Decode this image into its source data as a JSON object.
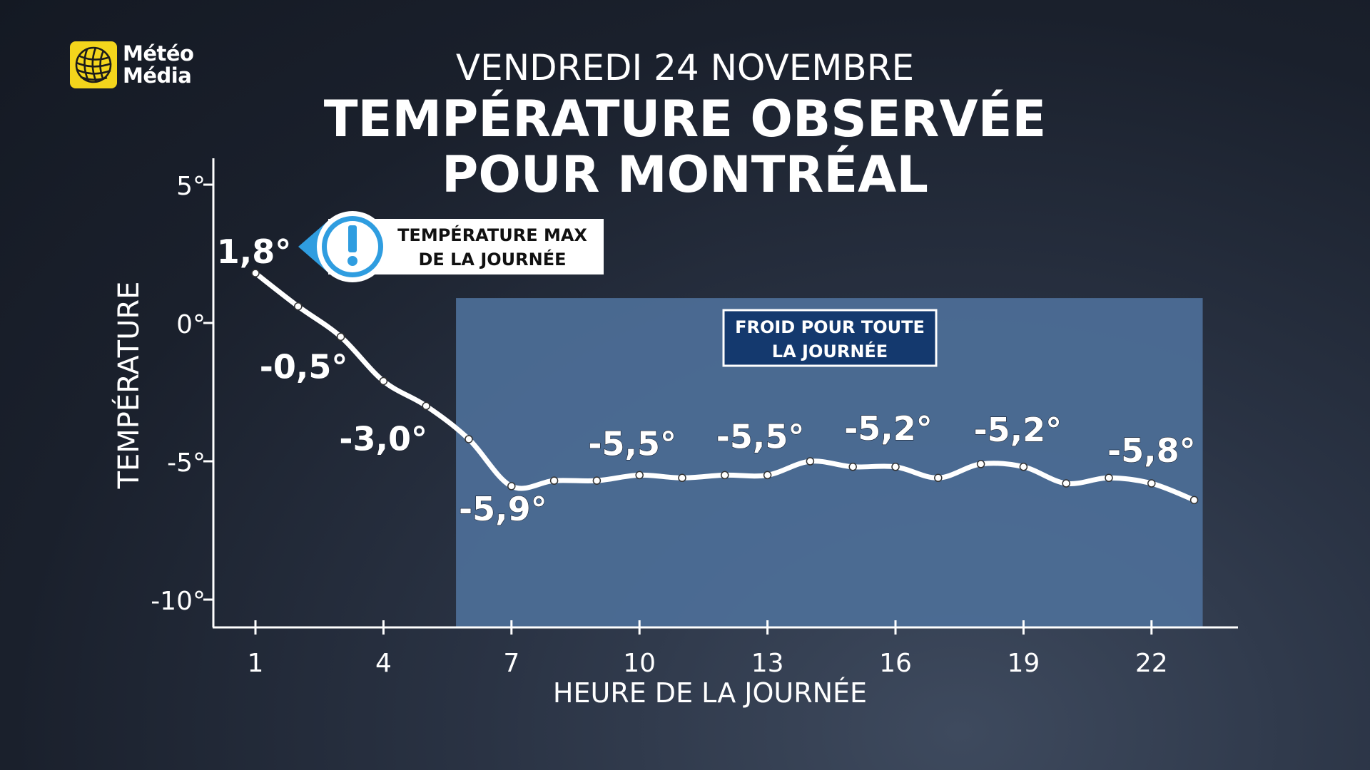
{
  "brand": {
    "line1": "Météo",
    "line2": "Média",
    "color": "#f3d51c"
  },
  "title": {
    "date": "VENDREDI 24 NOVEMBRE",
    "line1": "TEMPÉRATURE OBSERVÉE",
    "line2": "POUR MONTRÉAL"
  },
  "callouts": {
    "max": {
      "line1": "TEMPÉRATURE MAX",
      "line2": "DE LA JOURNÉE",
      "icon": "exclamation-icon"
    },
    "cold": {
      "line1": "FROID POUR TOUTE",
      "line2": "LA JOURNÉE"
    }
  },
  "chart_data": {
    "type": "line",
    "xlabel": "HEURE DE LA JOURNÉE",
    "ylabel": "TEMPÉRATURE",
    "x_ticks": [
      1,
      4,
      7,
      10,
      13,
      16,
      19,
      22
    ],
    "y_ticks": [
      5,
      0,
      -5,
      -10
    ],
    "y_tick_labels": [
      "5°",
      "0°",
      "-5°",
      "-10°"
    ],
    "xlim": [
      0,
      25
    ],
    "ylim": [
      -11,
      6
    ],
    "highlight_range": {
      "x": [
        5.7,
        23.2
      ],
      "y": [
        -11,
        0.9
      ],
      "color": "#4d6f98"
    },
    "series": [
      {
        "x": [
          1,
          2,
          3,
          4,
          5,
          6,
          7,
          8,
          9,
          10,
          11,
          12,
          13,
          14,
          15,
          16,
          17,
          18,
          19,
          20,
          21,
          22,
          23
        ],
        "values": [
          1.8,
          0.6,
          -0.5,
          -2.1,
          -3.0,
          -4.2,
          -5.9,
          -5.7,
          -5.7,
          -5.5,
          -5.6,
          -5.5,
          -5.5,
          -5.0,
          -5.2,
          -5.2,
          -5.6,
          -5.1,
          -5.2,
          -5.8,
          -5.6,
          -5.8,
          -6.4
        ]
      }
    ],
    "data_labels": [
      {
        "text": "1,8°",
        "x": 1,
        "value": 1.8,
        "dx": -2,
        "dy": -14
      },
      {
        "text": "-0,5°",
        "x": 3,
        "value": -0.5,
        "dx": -52,
        "dy": 58
      },
      {
        "text": "-3,0°",
        "x": 5,
        "value": -3.0,
        "dx": -60,
        "dy": 62
      },
      {
        "text": "-5,9°",
        "x": 7,
        "value": -5.9,
        "dx": -12,
        "dy": 48
      },
      {
        "text": "-5,5°",
        "x": 10,
        "value": -5.5,
        "dx": -10,
        "dy": -28
      },
      {
        "text": "-5,5°",
        "x": 13,
        "value": -5.5,
        "dx": -10,
        "dy": -38
      },
      {
        "text": "-5,2°",
        "x": 16,
        "value": -5.2,
        "dx": -10,
        "dy": -38
      },
      {
        "text": "-5,2°",
        "x": 19,
        "value": -5.2,
        "dx": -8,
        "dy": -36
      },
      {
        "text": "-5,8°",
        "x": 22,
        "value": -5.8,
        "dx": 0,
        "dy": -30
      }
    ]
  }
}
